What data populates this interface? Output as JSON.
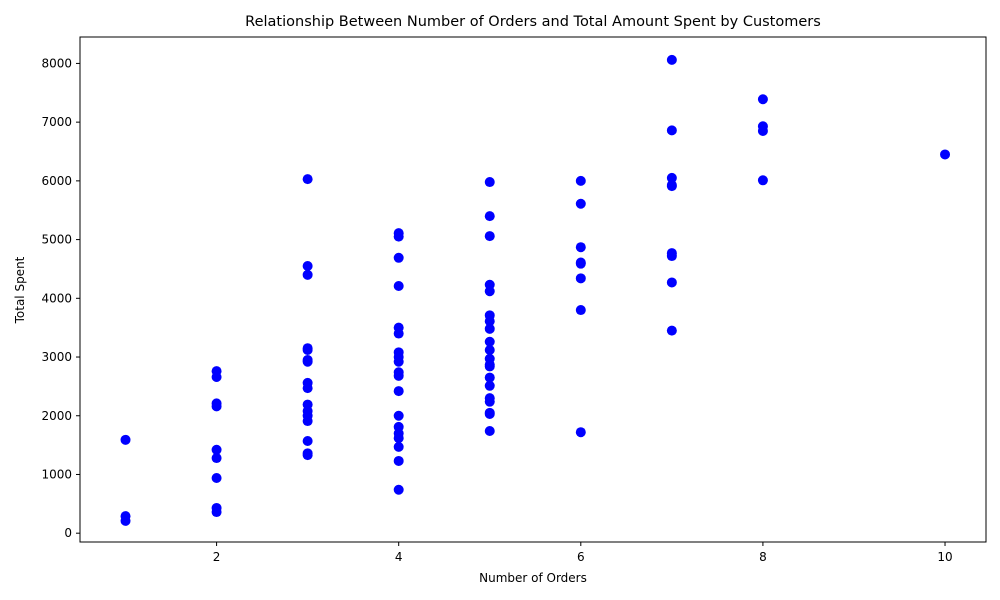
{
  "chart_data": {
    "type": "scatter",
    "title": "Relationship Between Number of Orders and Total Amount Spent by Customers",
    "xlabel": "Number of Orders",
    "ylabel": "Total Spent",
    "xlim": [
      0.5,
      10.45
    ],
    "ylim": [
      -150,
      8450
    ],
    "xticks": [
      2,
      4,
      6,
      8,
      10
    ],
    "yticks": [
      0,
      1000,
      2000,
      3000,
      4000,
      5000,
      6000,
      7000,
      8000
    ],
    "grid": false,
    "marker_color": "#0000ff",
    "points": [
      [
        1,
        1590
      ],
      [
        1,
        290
      ],
      [
        1,
        210
      ],
      [
        2,
        2760
      ],
      [
        2,
        2660
      ],
      [
        2,
        2210
      ],
      [
        2,
        2160
      ],
      [
        2,
        1420
      ],
      [
        2,
        1280
      ],
      [
        2,
        940
      ],
      [
        2,
        430
      ],
      [
        2,
        360
      ],
      [
        3,
        6030
      ],
      [
        3,
        4550
      ],
      [
        3,
        4400
      ],
      [
        3,
        3150
      ],
      [
        3,
        3120
      ],
      [
        3,
        2950
      ],
      [
        3,
        2920
      ],
      [
        3,
        2560
      ],
      [
        3,
        2470
      ],
      [
        3,
        2190
      ],
      [
        3,
        2080
      ],
      [
        3,
        2000
      ],
      [
        3,
        1910
      ],
      [
        3,
        1570
      ],
      [
        3,
        1360
      ],
      [
        3,
        1330
      ],
      [
        4,
        5110
      ],
      [
        4,
        5050
      ],
      [
        4,
        4690
      ],
      [
        4,
        4210
      ],
      [
        4,
        3500
      ],
      [
        4,
        3400
      ],
      [
        4,
        3080
      ],
      [
        4,
        3000
      ],
      [
        4,
        2920
      ],
      [
        4,
        2740
      ],
      [
        4,
        2680
      ],
      [
        4,
        2420
      ],
      [
        4,
        2000
      ],
      [
        4,
        1810
      ],
      [
        4,
        1700
      ],
      [
        4,
        1620
      ],
      [
        4,
        1470
      ],
      [
        4,
        1230
      ],
      [
        4,
        740
      ],
      [
        5,
        5980
      ],
      [
        5,
        5400
      ],
      [
        5,
        5060
      ],
      [
        5,
        4230
      ],
      [
        5,
        4120
      ],
      [
        5,
        3710
      ],
      [
        5,
        3610
      ],
      [
        5,
        3480
      ],
      [
        5,
        3260
      ],
      [
        5,
        3120
      ],
      [
        5,
        2970
      ],
      [
        5,
        2870
      ],
      [
        5,
        2840
      ],
      [
        5,
        2650
      ],
      [
        5,
        2510
      ],
      [
        5,
        2300
      ],
      [
        5,
        2240
      ],
      [
        5,
        2050
      ],
      [
        5,
        2030
      ],
      [
        5,
        1740
      ],
      [
        6,
        6000
      ],
      [
        6,
        5610
      ],
      [
        6,
        4870
      ],
      [
        6,
        4610
      ],
      [
        6,
        4590
      ],
      [
        6,
        4340
      ],
      [
        6,
        3800
      ],
      [
        6,
        1720
      ],
      [
        7,
        8060
      ],
      [
        7,
        6860
      ],
      [
        7,
        6050
      ],
      [
        7,
        5930
      ],
      [
        7,
        5910
      ],
      [
        7,
        4770
      ],
      [
        7,
        4720
      ],
      [
        7,
        4270
      ],
      [
        7,
        3450
      ],
      [
        8,
        7390
      ],
      [
        8,
        6930
      ],
      [
        8,
        6850
      ],
      [
        8,
        6010
      ],
      [
        10,
        6450
      ]
    ]
  }
}
